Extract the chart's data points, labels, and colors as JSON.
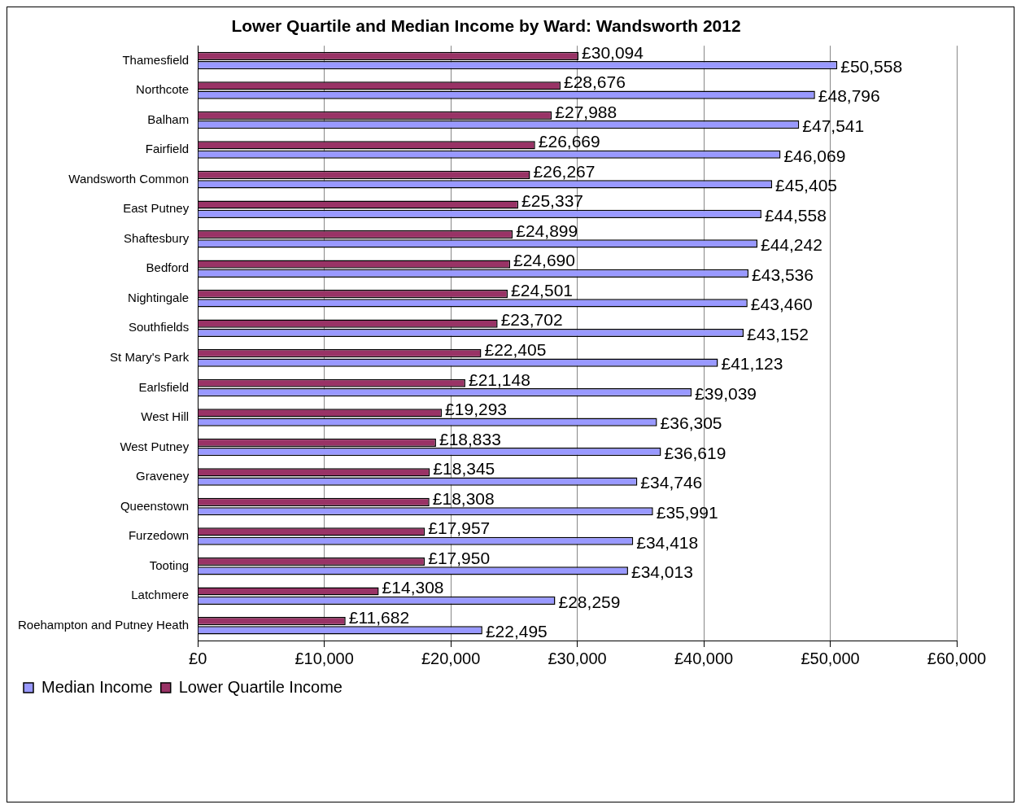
{
  "chart_data": {
    "type": "bar",
    "orientation": "horizontal",
    "title": "Lower Quartile and Median Income by Ward: Wandsworth 2012",
    "categories": [
      "Thamesfield",
      "Northcote",
      "Balham",
      "Fairfield",
      "Wandsworth Common",
      "East Putney",
      "Shaftesbury",
      "Bedford",
      "Nightingale",
      "Southfields",
      "St Mary's Park",
      "Earlsfield",
      "West Hill",
      "West Putney",
      "Graveney",
      "Queenstown",
      "Furzedown",
      "Tooting",
      "Latchmere",
      "Roehampton and Putney Heath"
    ],
    "series": [
      {
        "name": "Lower Quartile Income",
        "color": "#993366",
        "values": [
          30094,
          28676,
          27988,
          26669,
          26267,
          25337,
          24899,
          24690,
          24501,
          23702,
          22405,
          21148,
          19293,
          18833,
          18345,
          18308,
          17957,
          17950,
          14308,
          11682
        ],
        "value_labels": [
          "£30,094",
          "£28,676",
          "£27,988",
          "£26,669",
          "£26,267",
          "£25,337",
          "£24,899",
          "£24,690",
          "£24,501",
          "£23,702",
          "£22,405",
          "£21,148",
          "£19,293",
          "£18,833",
          "£18,345",
          "£18,308",
          "£17,957",
          "£17,950",
          "£14,308",
          "£11,682"
        ]
      },
      {
        "name": "Median Income",
        "color": "#9999ff",
        "values": [
          50558,
          48796,
          47541,
          46069,
          45405,
          44558,
          44242,
          43536,
          43460,
          43152,
          41123,
          39039,
          36305,
          36619,
          34746,
          35991,
          34418,
          34013,
          28259,
          22495
        ],
        "value_labels": [
          "£50,558",
          "£48,796",
          "£47,541",
          "£46,069",
          "£45,405",
          "£44,558",
          "£44,242",
          "£43,536",
          "£43,460",
          "£43,152",
          "£41,123",
          "£39,039",
          "£36,305",
          "£36,619",
          "£34,746",
          "£35,991",
          "£34,418",
          "£34,013",
          "£28,259",
          "£22,495"
        ]
      }
    ],
    "xlim": [
      0,
      60000
    ],
    "xticks": [
      {
        "value": 0,
        "label": "£0"
      },
      {
        "value": 10000,
        "label": "£10,000"
      },
      {
        "value": 20000,
        "label": "£20,000"
      },
      {
        "value": 30000,
        "label": "£30,000"
      },
      {
        "value": 40000,
        "label": "£40,000"
      },
      {
        "value": 50000,
        "label": "£50,000"
      },
      {
        "value": 60000,
        "label": "£60,000"
      }
    ],
    "grid": "x",
    "legend": "bottom"
  }
}
